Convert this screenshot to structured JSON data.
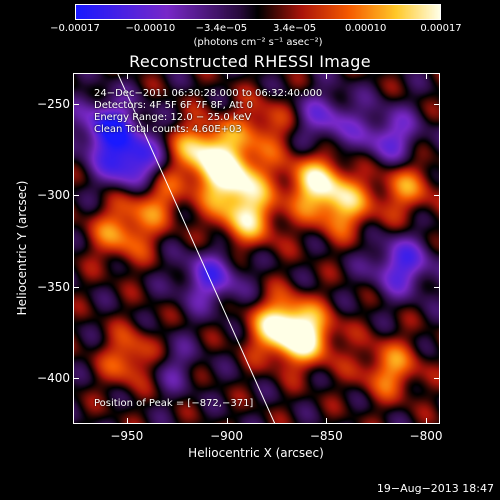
{
  "chart_data": {
    "type": "heatmap",
    "title": "Reconstructed RHESSI Image",
    "xlabel": "Heliocentric X (arcsec)",
    "ylabel": "Heliocentric Y (arcsec)",
    "xlim": [
      -977,
      -793
    ],
    "ylim": [
      -425,
      -233
    ],
    "xticks": [
      -950,
      -900,
      -850,
      -800
    ],
    "yticks": [
      -250,
      -300,
      -350,
      -400
    ],
    "xtick_labels": [
      "−950",
      "−900",
      "−850",
      "−800"
    ],
    "ytick_labels": [
      "−250",
      "−300",
      "−350",
      "−400"
    ],
    "colorbar": {
      "ticks": [
        -0.00017,
        -0.0001,
        -3.4e-05,
        3.4e-05,
        0.0001,
        0.00017
      ],
      "tick_labels": [
        "−0.00017",
        "−0.00010",
        "−3.4e−05",
        "3.4e−05",
        "0.00010",
        "0.00017"
      ],
      "units": "(photons cm⁻² s⁻¹ asec⁻²)",
      "range": [
        -0.00017,
        0.00017
      ]
    },
    "annotations": {
      "time": "24−Dec−2011 06:30:28.000 to 06:32:40.000",
      "detectors": "Detectors: 4F 5F 6F 7F 8F, Att 0",
      "energy": "Energy Range: 12.0 − 25.0 keV",
      "method": "Clean     Total counts: 4.60E+03",
      "peak": "Position of Peak = [−872,−371]"
    },
    "peak_position": [
      -872,
      -371
    ],
    "limb_line": [
      [
        -955,
        -233
      ],
      [
        -876,
        -425
      ]
    ],
    "bright_regions": [
      {
        "x": -897,
        "y": -290,
        "value": 0.00017
      },
      {
        "x": -912,
        "y": -275,
        "value": 0.00015
      },
      {
        "x": -890,
        "y": -312,
        "value": 0.00013
      },
      {
        "x": -855,
        "y": -292,
        "value": 0.00014
      },
      {
        "x": -842,
        "y": -306,
        "value": 0.00011
      },
      {
        "x": -872,
        "y": -372,
        "value": 0.00017
      },
      {
        "x": -860,
        "y": -378,
        "value": 0.00012
      },
      {
        "x": -944,
        "y": -390,
        "value": 0.00016
      },
      {
        "x": -953,
        "y": -320,
        "value": 0.0001
      },
      {
        "x": -937,
        "y": -300,
        "value": 9e-05
      },
      {
        "x": -818,
        "y": -395,
        "value": 0.0001
      },
      {
        "x": -810,
        "y": -295,
        "value": 9e-05
      },
      {
        "x": -883,
        "y": -262,
        "value": 8e-05
      }
    ],
    "dark_regions": [
      {
        "x": -960,
        "y": -262,
        "value": -0.00014
      },
      {
        "x": -948,
        "y": -282,
        "value": -0.00016
      },
      {
        "x": -908,
        "y": -345,
        "value": -0.00011
      },
      {
        "x": -935,
        "y": -392,
        "value": -0.00012
      },
      {
        "x": -812,
        "y": -338,
        "value": -0.00012
      },
      {
        "x": -850,
        "y": -258,
        "value": -9e-05
      },
      {
        "x": -818,
        "y": -268,
        "value": -0.0001
      }
    ]
  },
  "footer": {
    "timestamp": "19−Aug−2013 18:47"
  }
}
